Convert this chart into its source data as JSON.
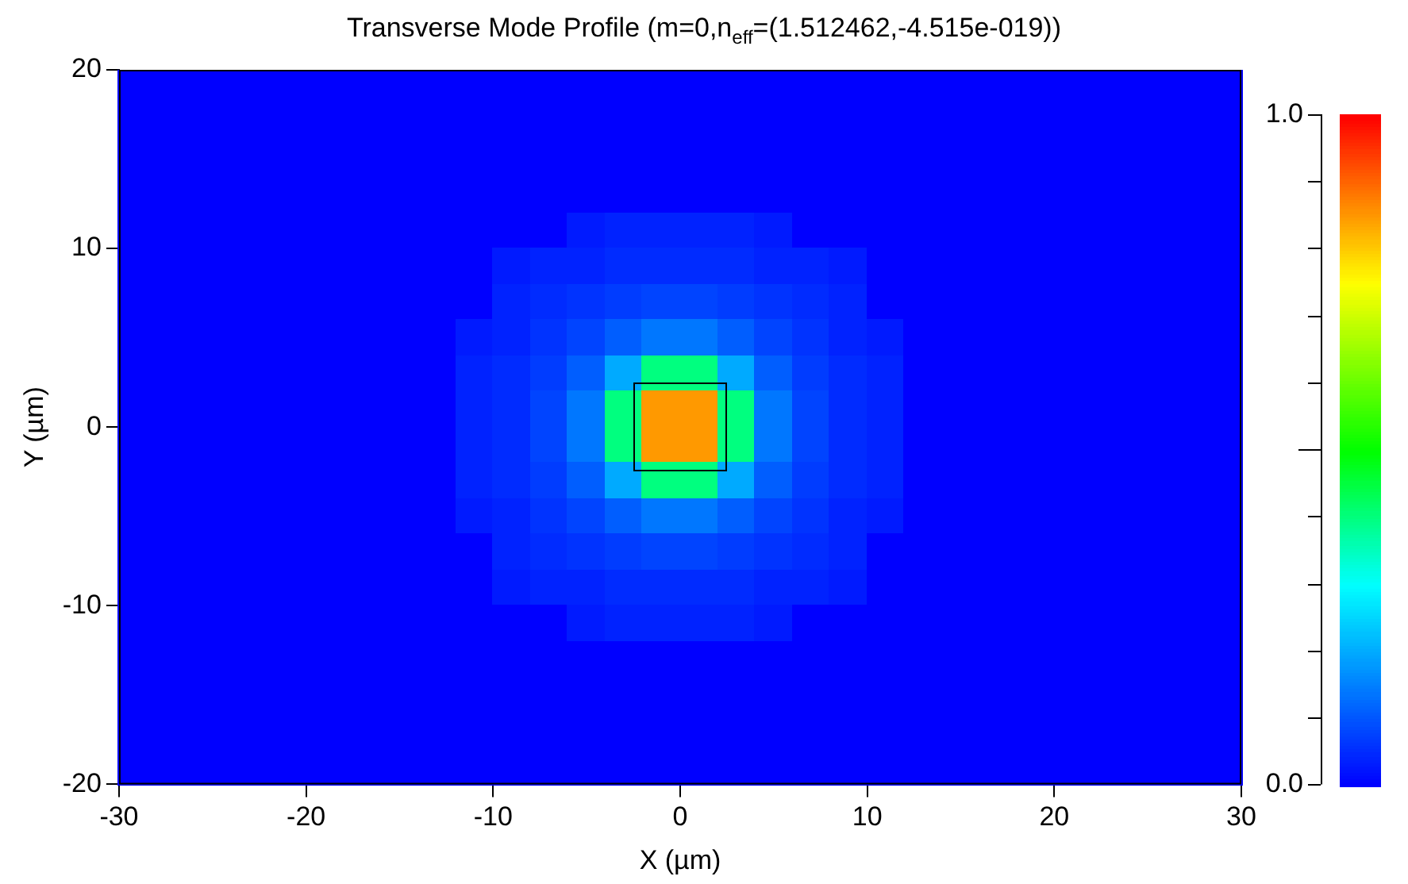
{
  "chart_data": {
    "type": "heatmap",
    "title": "Transverse Mode Profile (m=0,n$_{eff}$=(1.512462,-4.515e-019))",
    "xlabel": "X (µm)",
    "ylabel": "Y (µm)",
    "x": [
      -29,
      -27,
      -25,
      -23,
      -21,
      -19,
      -17,
      -15,
      -13,
      -11,
      -9,
      -7,
      -5,
      -3,
      -1,
      1,
      3,
      5,
      7,
      9,
      11,
      13,
      15,
      17,
      19,
      21,
      23,
      25,
      27,
      29
    ],
    "y": [
      19,
      17,
      15,
      13,
      11,
      9,
      7,
      5,
      3,
      1,
      -1,
      -3,
      -5,
      -7,
      -9,
      -11,
      -13,
      -15,
      -17,
      -19
    ],
    "cells": [
      [
        0,
        0,
        0,
        0,
        0,
        0,
        0,
        0,
        0,
        0,
        0,
        0,
        0,
        0,
        0,
        0,
        0,
        0,
        0,
        0,
        0,
        0,
        0,
        0,
        0,
        0,
        0,
        0,
        0,
        0
      ],
      [
        0,
        0,
        0,
        0,
        0,
        0,
        0,
        0,
        0,
        0,
        0,
        0,
        0,
        0,
        0,
        0,
        0,
        0,
        0,
        0,
        0,
        0,
        0,
        0,
        0,
        0,
        0,
        0,
        0,
        0
      ],
      [
        0,
        0,
        0,
        0,
        0,
        0,
        0,
        0,
        0,
        0,
        0,
        0,
        0,
        0,
        0,
        0,
        0,
        0,
        0,
        0,
        0,
        0,
        0,
        0,
        0,
        0,
        0,
        0,
        0,
        0
      ],
      [
        0,
        0,
        0,
        0,
        0,
        0,
        0,
        0,
        0,
        0,
        0,
        0,
        0,
        0,
        0,
        0,
        0,
        0,
        0,
        0,
        0,
        0,
        0,
        0,
        0,
        0,
        0,
        0,
        0,
        0
      ],
      [
        0,
        0,
        0,
        0,
        0,
        0,
        0,
        0,
        0,
        0,
        0,
        0,
        0.03,
        0.04,
        0.04,
        0.04,
        0.04,
        0.03,
        0,
        0,
        0,
        0,
        0,
        0,
        0,
        0,
        0,
        0,
        0,
        0
      ],
      [
        0,
        0,
        0,
        0,
        0,
        0,
        0,
        0,
        0,
        0,
        0.03,
        0.04,
        0.04,
        0.05,
        0.05,
        0.05,
        0.05,
        0.04,
        0.04,
        0.03,
        0,
        0,
        0,
        0,
        0,
        0,
        0,
        0,
        0,
        0
      ],
      [
        0,
        0,
        0,
        0,
        0,
        0,
        0,
        0,
        0,
        0,
        0.04,
        0.05,
        0.06,
        0.07,
        0.08,
        0.08,
        0.07,
        0.06,
        0.05,
        0.04,
        0,
        0,
        0,
        0,
        0,
        0,
        0,
        0,
        0,
        0
      ],
      [
        0,
        0,
        0,
        0,
        0,
        0,
        0,
        0,
        0,
        0.03,
        0.04,
        0.06,
        0.08,
        0.11,
        0.14,
        0.14,
        0.11,
        0.08,
        0.06,
        0.04,
        0.03,
        0,
        0,
        0,
        0,
        0,
        0,
        0,
        0,
        0
      ],
      [
        0,
        0,
        0,
        0,
        0,
        0,
        0,
        0,
        0,
        0.04,
        0.05,
        0.07,
        0.11,
        0.2,
        0.4,
        0.4,
        0.2,
        0.11,
        0.07,
        0.05,
        0.04,
        0,
        0,
        0,
        0,
        0,
        0,
        0,
        0,
        0
      ],
      [
        0,
        0,
        0,
        0,
        0,
        0,
        0,
        0,
        0,
        0.04,
        0.05,
        0.08,
        0.14,
        0.4,
        0.85,
        0.85,
        0.4,
        0.14,
        0.08,
        0.05,
        0.04,
        0,
        0,
        0,
        0,
        0,
        0,
        0,
        0,
        0
      ],
      [
        0,
        0,
        0,
        0,
        0,
        0,
        0,
        0,
        0,
        0.04,
        0.05,
        0.08,
        0.14,
        0.4,
        0.85,
        0.85,
        0.4,
        0.14,
        0.08,
        0.05,
        0.04,
        0,
        0,
        0,
        0,
        0,
        0,
        0,
        0,
        0
      ],
      [
        0,
        0,
        0,
        0,
        0,
        0,
        0,
        0,
        0,
        0.04,
        0.05,
        0.07,
        0.11,
        0.2,
        0.4,
        0.4,
        0.2,
        0.11,
        0.07,
        0.05,
        0.04,
        0,
        0,
        0,
        0,
        0,
        0,
        0,
        0,
        0
      ],
      [
        0,
        0,
        0,
        0,
        0,
        0,
        0,
        0,
        0,
        0.03,
        0.04,
        0.06,
        0.08,
        0.11,
        0.14,
        0.14,
        0.11,
        0.08,
        0.06,
        0.04,
        0.03,
        0,
        0,
        0,
        0,
        0,
        0,
        0,
        0,
        0
      ],
      [
        0,
        0,
        0,
        0,
        0,
        0,
        0,
        0,
        0,
        0,
        0.04,
        0.05,
        0.06,
        0.07,
        0.08,
        0.08,
        0.07,
        0.06,
        0.05,
        0.04,
        0,
        0,
        0,
        0,
        0,
        0,
        0,
        0,
        0,
        0
      ],
      [
        0,
        0,
        0,
        0,
        0,
        0,
        0,
        0,
        0,
        0,
        0.03,
        0.04,
        0.04,
        0.05,
        0.05,
        0.05,
        0.05,
        0.04,
        0.04,
        0.03,
        0,
        0,
        0,
        0,
        0,
        0,
        0,
        0,
        0,
        0
      ],
      [
        0,
        0,
        0,
        0,
        0,
        0,
        0,
        0,
        0,
        0,
        0,
        0,
        0.03,
        0.04,
        0.04,
        0.04,
        0.04,
        0.03,
        0,
        0,
        0,
        0,
        0,
        0,
        0,
        0,
        0,
        0,
        0,
        0
      ],
      [
        0,
        0,
        0,
        0,
        0,
        0,
        0,
        0,
        0,
        0,
        0,
        0,
        0,
        0,
        0,
        0,
        0,
        0,
        0,
        0,
        0,
        0,
        0,
        0,
        0,
        0,
        0,
        0,
        0,
        0
      ],
      [
        0,
        0,
        0,
        0,
        0,
        0,
        0,
        0,
        0,
        0,
        0,
        0,
        0,
        0,
        0,
        0,
        0,
        0,
        0,
        0,
        0,
        0,
        0,
        0,
        0,
        0,
        0,
        0,
        0,
        0
      ],
      [
        0,
        0,
        0,
        0,
        0,
        0,
        0,
        0,
        0,
        0,
        0,
        0,
        0,
        0,
        0,
        0,
        0,
        0,
        0,
        0,
        0,
        0,
        0,
        0,
        0,
        0,
        0,
        0,
        0,
        0
      ],
      [
        0,
        0,
        0,
        0,
        0,
        0,
        0,
        0,
        0,
        0,
        0,
        0,
        0,
        0,
        0,
        0,
        0,
        0,
        0,
        0,
        0,
        0,
        0,
        0,
        0,
        0,
        0,
        0,
        0,
        0
      ]
    ],
    "xlim": [
      -30,
      30
    ],
    "xticks": [
      -30,
      -20,
      -10,
      0,
      10,
      20,
      30
    ],
    "ylim": [
      -20,
      20
    ],
    "yticks": [
      -20,
      -10,
      0,
      10,
      20
    ],
    "clim": [
      0,
      1
    ],
    "cticks": [
      {
        "value": 0,
        "label": "0.0"
      },
      {
        "value": 0.1,
        "label": null
      },
      {
        "value": 0.2,
        "label": null
      },
      {
        "value": 0.3,
        "label": null
      },
      {
        "value": 0.4,
        "label": null
      },
      {
        "value": 0.5,
        "label": null
      },
      {
        "value": 0.6,
        "label": null
      },
      {
        "value": 0.7,
        "label": null
      },
      {
        "value": 0.8,
        "label": null
      },
      {
        "value": 0.9,
        "label": null
      },
      {
        "value": 1,
        "label": "1.0"
      }
    ]
  }
}
